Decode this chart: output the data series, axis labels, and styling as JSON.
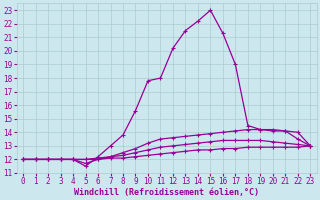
{
  "xlabel": "Windchill (Refroidissement éolien,°C)",
  "background_color": "#cce8ee",
  "grid_color": "#aacccc",
  "line_color": "#990099",
  "xlim": [
    -0.5,
    23.5
  ],
  "ylim": [
    11,
    23.5
  ],
  "xticks": [
    0,
    1,
    2,
    3,
    4,
    5,
    6,
    7,
    8,
    9,
    10,
    11,
    12,
    13,
    14,
    15,
    16,
    17,
    18,
    19,
    20,
    21,
    22,
    23
  ],
  "yticks": [
    11,
    12,
    13,
    14,
    15,
    16,
    17,
    18,
    19,
    20,
    21,
    22,
    23
  ],
  "series": [
    {
      "x": [
        0,
        1,
        2,
        3,
        4,
        5,
        6,
        7,
        8,
        9,
        10,
        11,
        12,
        13,
        14,
        15,
        16,
        17,
        18,
        19,
        20,
        21,
        22,
        23
      ],
      "y": [
        12.0,
        12.0,
        12.0,
        12.0,
        12.0,
        11.5,
        12.2,
        13.0,
        13.8,
        15.6,
        17.8,
        18.0,
        20.2,
        21.5,
        22.2,
        23.0,
        21.3,
        19.0,
        14.5,
        14.2,
        14.1,
        14.1,
        13.5,
        13.0
      ]
    },
    {
      "x": [
        0,
        1,
        2,
        3,
        4,
        5,
        6,
        7,
        8,
        9,
        10,
        11,
        12,
        13,
        14,
        15,
        16,
        17,
        18,
        19,
        20,
        21,
        22,
        23
      ],
      "y": [
        12.0,
        12.0,
        12.0,
        12.0,
        12.0,
        11.7,
        12.0,
        12.2,
        12.5,
        12.8,
        13.2,
        13.5,
        13.6,
        13.7,
        13.8,
        13.9,
        14.0,
        14.1,
        14.2,
        14.2,
        14.2,
        14.1,
        14.0,
        13.0
      ]
    },
    {
      "x": [
        0,
        1,
        2,
        3,
        4,
        5,
        6,
        7,
        8,
        9,
        10,
        11,
        12,
        13,
        14,
        15,
        16,
        17,
        18,
        19,
        20,
        21,
        22,
        23
      ],
      "y": [
        12.0,
        12.0,
        12.0,
        12.0,
        12.0,
        12.0,
        12.1,
        12.2,
        12.3,
        12.5,
        12.7,
        12.9,
        13.0,
        13.1,
        13.2,
        13.3,
        13.4,
        13.4,
        13.4,
        13.4,
        13.3,
        13.2,
        13.1,
        13.0
      ]
    },
    {
      "x": [
        0,
        1,
        2,
        3,
        4,
        5,
        6,
        7,
        8,
        9,
        10,
        11,
        12,
        13,
        14,
        15,
        16,
        17,
        18,
        19,
        20,
        21,
        22,
        23
      ],
      "y": [
        12.0,
        12.0,
        12.0,
        12.0,
        12.0,
        12.0,
        12.0,
        12.1,
        12.1,
        12.2,
        12.3,
        12.4,
        12.5,
        12.6,
        12.7,
        12.7,
        12.8,
        12.8,
        12.9,
        12.9,
        12.9,
        12.9,
        12.9,
        13.0
      ]
    }
  ],
  "xlabel_fontsize": 6,
  "tick_fontsize": 5.5
}
